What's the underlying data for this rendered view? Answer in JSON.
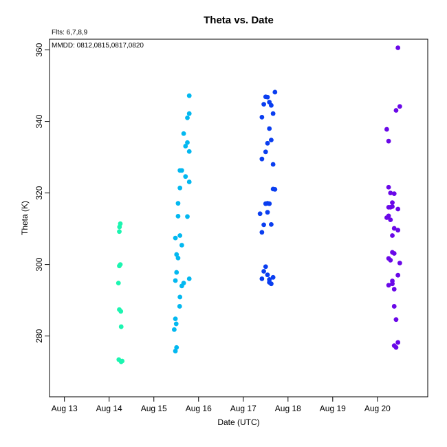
{
  "chart_data": {
    "type": "scatter",
    "title": "Theta  vs. Date",
    "subtitle": "Flts: 6,7,8,9",
    "annotation": "MMDD: 0812,0815,0817,0820",
    "xlabel": "Date (UTC)",
    "ylabel": "Theta (K)",
    "xlim": [
      "2025-08-12 16:00",
      "2025-08-21 03:00"
    ],
    "ylim": [
      263,
      363
    ],
    "x_tick_labels": [
      "Aug 13",
      "Aug 14",
      "Aug 15",
      "Aug 16",
      "Aug 17",
      "Aug 18",
      "Aug 19",
      "Aug 20"
    ],
    "x_tick_values": [
      "2025-08-13 00:00",
      "2025-08-14 00:00",
      "2025-08-15 00:00",
      "2025-08-16 00:00",
      "2025-08-17 00:00",
      "2025-08-18 00:00",
      "2025-08-19 00:00",
      "2025-08-20 00:00"
    ],
    "y_tick_values": [
      280,
      300,
      320,
      340,
      360
    ],
    "y_tick_labels": [
      "280",
      "300",
      "320",
      "340",
      "360"
    ],
    "grid": false,
    "legend": "none",
    "series": [
      {
        "color": "#1bf5b0",
        "points": [
          [
            "2025-08-14 05:11",
            273.4
          ],
          [
            "2025-08-14 05:28",
            287.4
          ],
          [
            "2025-08-14 05:00",
            294.8
          ],
          [
            "2025-08-14 05:28",
            299.6
          ],
          [
            "2025-08-14 06:00",
            300.0
          ],
          [
            "2025-08-14 05:28",
            309.2
          ],
          [
            "2025-08-14 05:34",
            310.5
          ],
          [
            "2025-08-14 06:00",
            311.4
          ],
          [
            "2025-08-14 06:17",
            286.9
          ],
          [
            "2025-08-14 06:28",
            282.6
          ],
          [
            "2025-08-14 06:28",
            272.8
          ],
          [
            "2025-08-14 07:00",
            273.0
          ]
        ]
      },
      {
        "color": "#03b8f0",
        "points": [
          [
            "2025-08-15 11:34",
            275.8
          ],
          [
            "2025-08-15 12:11",
            276.8
          ],
          [
            "2025-08-15 10:57",
            281.8
          ],
          [
            "2025-08-15 11:34",
            284.8
          ],
          [
            "2025-08-15 12:00",
            283.4
          ],
          [
            "2025-08-15 13:51",
            288.3
          ],
          [
            "2025-08-15 11:34",
            295.5
          ],
          [
            "2025-08-15 12:11",
            297.8
          ],
          [
            "2025-08-15 11:34",
            307.4
          ],
          [
            "2025-08-15 12:11",
            302.8
          ],
          [
            "2025-08-15 13:00",
            301.8
          ],
          [
            "2025-08-15 14:00",
            308.1
          ],
          [
            "2025-08-15 15:00",
            305.4
          ],
          [
            "2025-08-15 13:00",
            313.5
          ],
          [
            "2025-08-15 13:00",
            317.1
          ],
          [
            "2025-08-15 14:00",
            321.4
          ],
          [
            "2025-08-15 14:00",
            326.3
          ],
          [
            "2025-08-15 15:00",
            326.3
          ],
          [
            "2025-08-15 17:00",
            324.6
          ],
          [
            "2025-08-15 19:00",
            323.1
          ],
          [
            "2025-08-15 18:00",
            313.4
          ],
          [
            "2025-08-15 15:00",
            294.0
          ],
          [
            "2025-08-15 16:00",
            294.8
          ],
          [
            "2025-08-15 19:00",
            296.0
          ],
          [
            "2025-08-15 14:00",
            290.9
          ],
          [
            "2025-08-15 16:00",
            336.6
          ],
          [
            "2025-08-15 18:00",
            334.1
          ],
          [
            "2025-08-15 17:00",
            333.1
          ],
          [
            "2025-08-15 19:00",
            331.6
          ],
          [
            "2025-08-15 18:00",
            341.0
          ],
          [
            "2025-08-15 19:00",
            342.2
          ],
          [
            "2025-08-15 19:00",
            347.2
          ]
        ]
      },
      {
        "color": "#0a3ef0",
        "points": [
          [
            "2025-08-17 10:00",
            296.0
          ],
          [
            "2025-08-17 11:00",
            298.1
          ],
          [
            "2025-08-17 12:00",
            299.4
          ],
          [
            "2025-08-17 13:00",
            297.1
          ],
          [
            "2025-08-17 14:00",
            295.8
          ],
          [
            "2025-08-17 14:00",
            295.0
          ],
          [
            "2025-08-17 15:00",
            294.6
          ],
          [
            "2025-08-17 16:00",
            296.4
          ],
          [
            "2025-08-17 10:00",
            309.0
          ],
          [
            "2025-08-17 11:00",
            311.1
          ],
          [
            "2025-08-17 09:00",
            314.2
          ],
          [
            "2025-08-17 12:00",
            317.0
          ],
          [
            "2025-08-17 13:00",
            317.1
          ],
          [
            "2025-08-17 14:00",
            317.0
          ],
          [
            "2025-08-17 13:00",
            314.6
          ],
          [
            "2025-08-17 15:00",
            311.2
          ],
          [
            "2025-08-17 16:00",
            321.1
          ],
          [
            "2025-08-17 17:00",
            321.0
          ],
          [
            "2025-08-17 10:00",
            329.5
          ],
          [
            "2025-08-17 10:00",
            341.2
          ],
          [
            "2025-08-17 12:00",
            331.5
          ],
          [
            "2025-08-17 13:00",
            333.9
          ],
          [
            "2025-08-17 15:00",
            334.8
          ],
          [
            "2025-08-17 16:00",
            328.0
          ],
          [
            "2025-08-17 14:00",
            338.0
          ],
          [
            "2025-08-17 16:00",
            342.2
          ],
          [
            "2025-08-17 11:00",
            344.8
          ],
          [
            "2025-08-17 12:00",
            346.9
          ],
          [
            "2025-08-17 13:00",
            346.8
          ],
          [
            "2025-08-17 14:00",
            345.4
          ],
          [
            "2025-08-17 15:00",
            344.5
          ],
          [
            "2025-08-17 17:00",
            348.2
          ]
        ]
      },
      {
        "color": "#6a08e8",
        "points": [
          [
            "2025-08-20 10:00",
            276.8
          ],
          [
            "2025-08-20 11:00",
            278.2
          ],
          [
            "2025-08-20 10:00",
            284.6
          ],
          [
            "2025-08-20 09:00",
            288.3
          ],
          [
            "2025-08-20 09:00",
            293.1
          ],
          [
            "2025-08-20 08:00",
            294.6
          ],
          [
            "2025-08-20 08:00",
            295.4
          ],
          [
            "2025-08-20 06:00",
            294.2
          ],
          [
            "2025-08-20 11:00",
            297.0
          ],
          [
            "2025-08-20 12:00",
            300.4
          ],
          [
            "2025-08-20 07:00",
            301.2
          ],
          [
            "2025-08-20 06:00",
            301.7
          ],
          [
            "2025-08-20 08:00",
            303.4
          ],
          [
            "2025-08-20 09:00",
            303.1
          ],
          [
            "2025-08-20 09:00",
            310.1
          ],
          [
            "2025-08-20 08:00",
            308.1
          ],
          [
            "2025-08-20 11:00",
            309.6
          ],
          [
            "2025-08-20 05:00",
            313.1
          ],
          [
            "2025-08-20 06:00",
            313.6
          ],
          [
            "2025-08-20 07:00",
            312.5
          ],
          [
            "2025-08-20 06:00",
            316.0
          ],
          [
            "2025-08-20 08:00",
            316.2
          ],
          [
            "2025-08-20 08:00",
            317.3
          ],
          [
            "2025-08-20 07:00",
            316.0
          ],
          [
            "2025-08-20 11:00",
            315.5
          ],
          [
            "2025-08-20 09:00",
            319.8
          ],
          [
            "2025-08-20 06:00",
            321.6
          ],
          [
            "2025-08-20 07:00",
            320.0
          ],
          [
            "2025-08-20 06:00",
            334.5
          ],
          [
            "2025-08-20 05:00",
            337.8
          ],
          [
            "2025-08-20 10:00",
            343.1
          ],
          [
            "2025-08-20 12:00",
            344.2
          ],
          [
            "2025-08-20 11:00",
            360.6
          ],
          [
            "2025-08-20 09:00",
            277.3
          ]
        ]
      }
    ]
  }
}
